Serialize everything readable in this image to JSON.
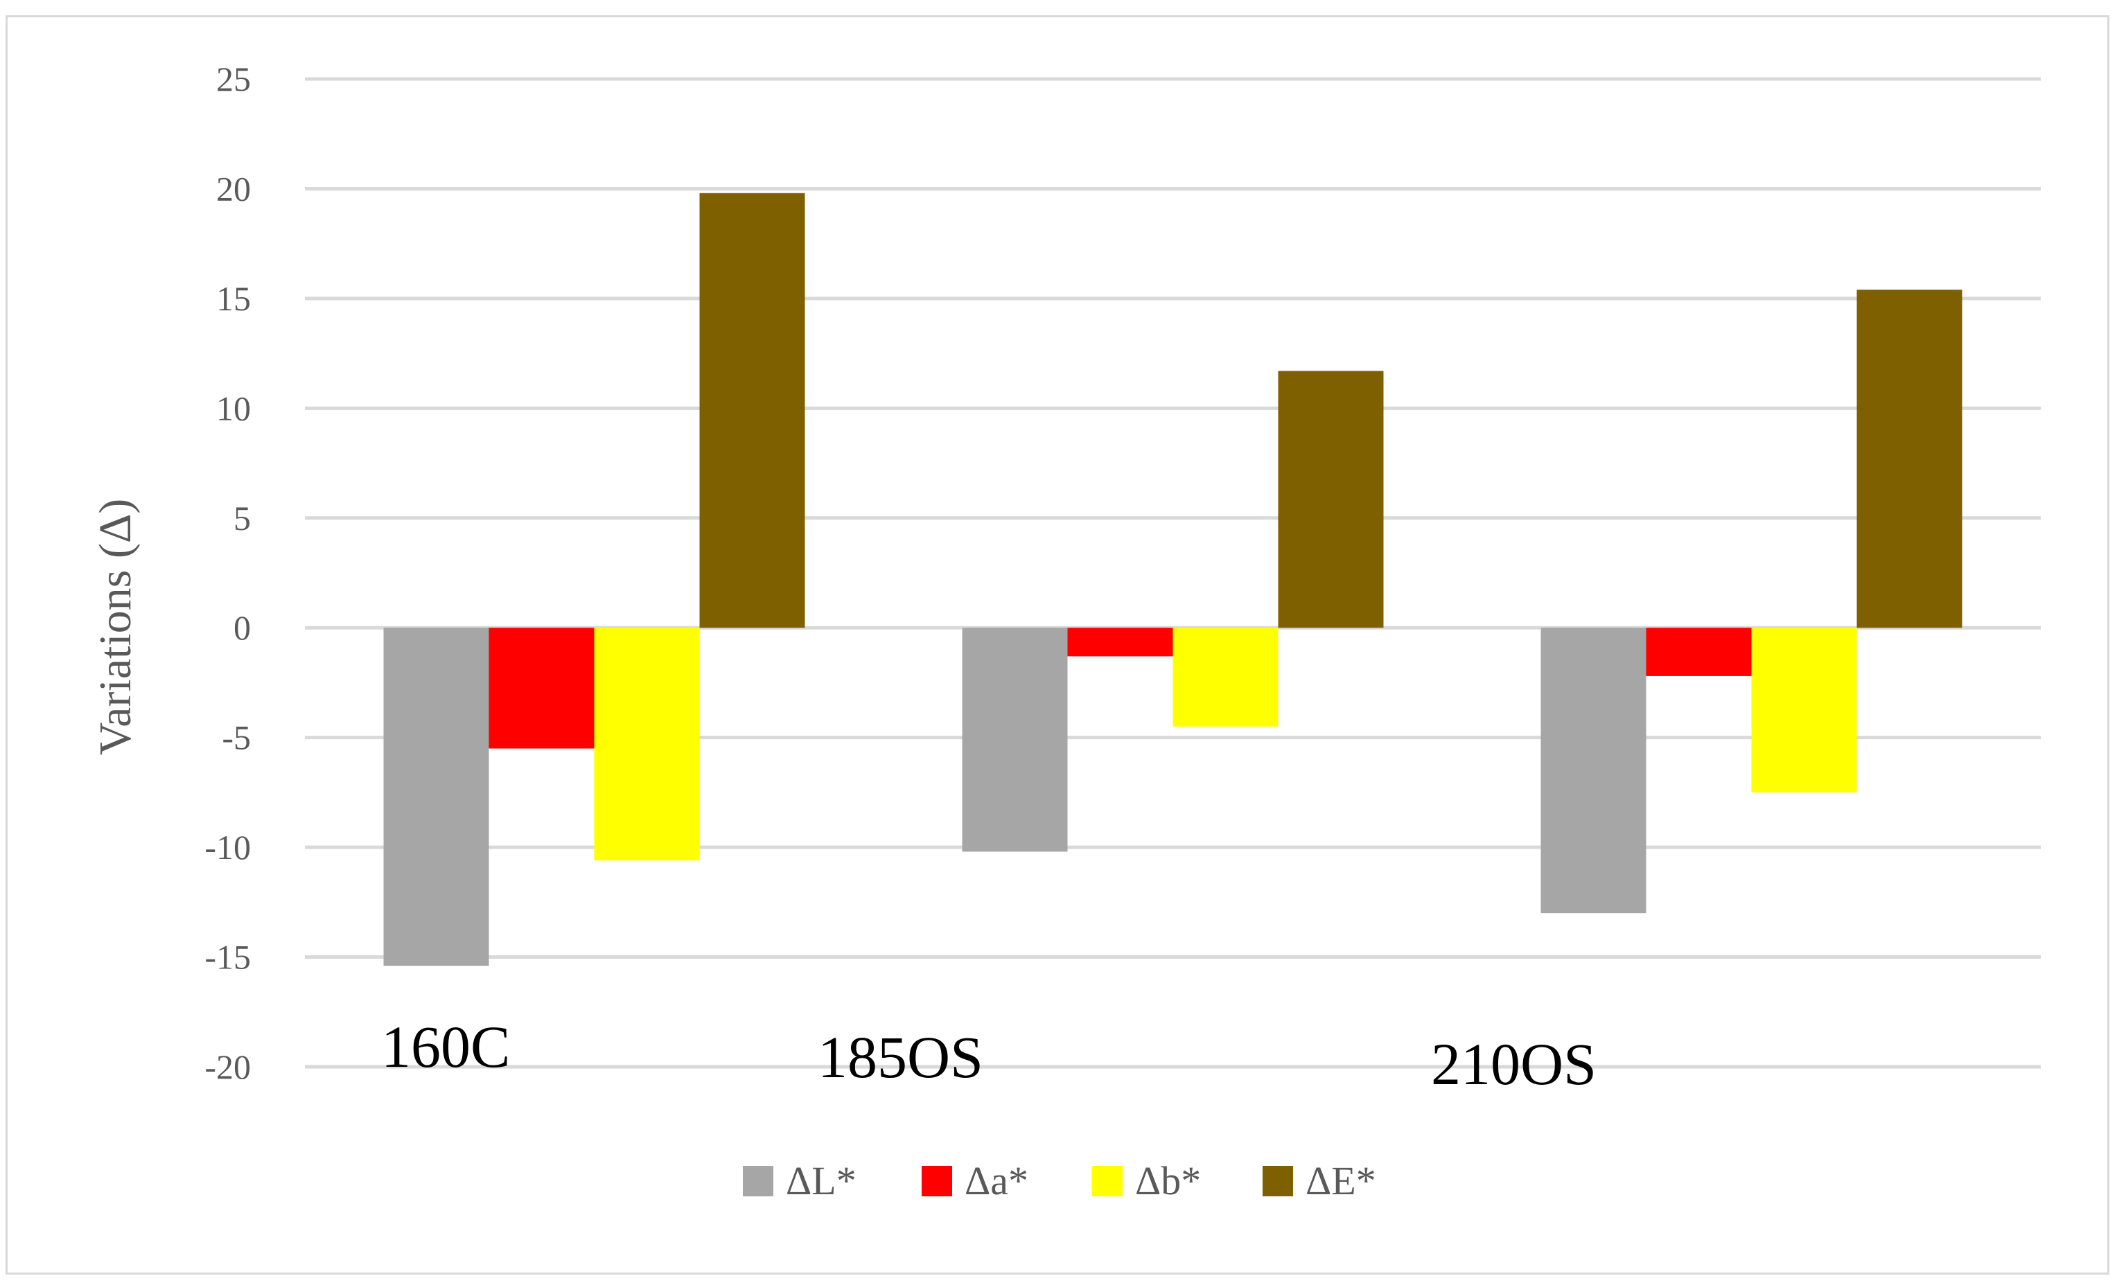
{
  "chart_data": {
    "type": "bar",
    "title": "",
    "xlabel": "",
    "ylabel": "Variations (Δ)",
    "ylim": [
      -20,
      25
    ],
    "yticks": [
      25,
      20,
      15,
      10,
      5,
      0,
      -5,
      -10,
      -15,
      -20
    ],
    "grid": true,
    "legend_position": "bottom",
    "categories": [
      "160C",
      "185OS",
      "210OS"
    ],
    "series": [
      {
        "name": "ΔL*",
        "color": "#a6a6a6",
        "values": [
          -15.4,
          -10.2,
          -13.0
        ]
      },
      {
        "name": "Δa*",
        "color": "#ff0000",
        "values": [
          -5.5,
          -1.3,
          -2.2
        ]
      },
      {
        "name": "Δb*",
        "color": "#ffff00",
        "values": [
          -10.6,
          -4.5,
          -7.5
        ]
      },
      {
        "name": "ΔE*",
        "color": "#7f6000",
        "values": [
          19.8,
          11.7,
          15.4
        ]
      }
    ]
  }
}
